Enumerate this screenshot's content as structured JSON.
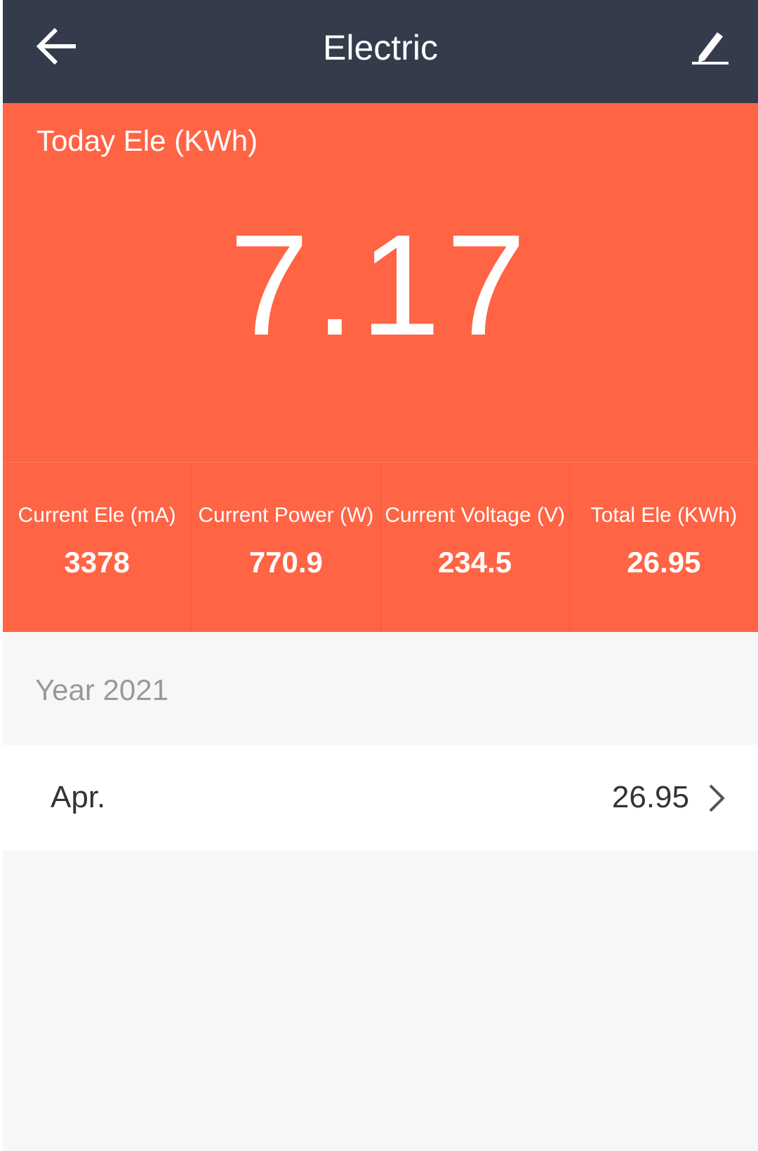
{
  "header": {
    "title": "Electric",
    "back_icon": "arrow-left-icon",
    "edit_icon": "pencil-icon"
  },
  "today": {
    "label": "Today Ele (KWh)",
    "value": "7.17"
  },
  "stats": [
    {
      "label": "Current Ele (mA)",
      "value": "3378"
    },
    {
      "label": "Current Power (W)",
      "value": "770.9"
    },
    {
      "label": "Current Voltage (V)",
      "value": "234.5"
    },
    {
      "label": "Total Ele (KWh)",
      "value": "26.95"
    }
  ],
  "history": {
    "year_label": "Year 2021",
    "rows": [
      {
        "month": "Apr.",
        "value": "26.95"
      }
    ]
  },
  "colors": {
    "header": "#343c4c",
    "accent": "#ff6444",
    "background": "#f7f7f7"
  }
}
